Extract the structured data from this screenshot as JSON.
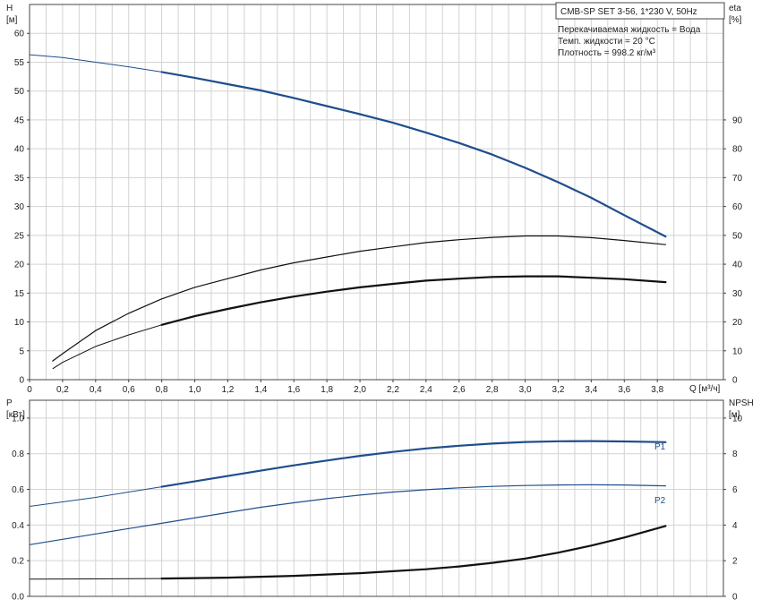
{
  "chart_data": [
    {
      "type": "line",
      "info": {
        "title": "CMB-SP SET 3-56, 1*230 V, 50Hz",
        "lines": [
          "Перекачиваемая жидкость = Вода",
          "Темп. жидкости = 20 °C",
          "Плотность = 998.2 кг/м³"
        ]
      },
      "xlabel": "Q [м³/ч]",
      "ylabel_left": [
        "H",
        "[м]"
      ],
      "ylabel_right": [
        "eta",
        "[%]"
      ],
      "xlim": [
        0,
        4.2
      ],
      "ylim_left": [
        0,
        65
      ],
      "ylim_right": [
        0,
        130
      ],
      "xticks": [
        "0",
        "0,2",
        "0,4",
        "0,6",
        "0,8",
        "1,0",
        "1,2",
        "1,4",
        "1,6",
        "1,8",
        "2,0",
        "2,2",
        "2,4",
        "2,6",
        "2,8",
        "3,0",
        "3,2",
        "3,4",
        "3,6",
        "3,8"
      ],
      "yticks_left": [
        "0",
        "5",
        "10",
        "15",
        "20",
        "25",
        "30",
        "35",
        "40",
        "45",
        "50",
        "55",
        "60"
      ],
      "yticks_right": [
        "0",
        "10",
        "20",
        "30",
        "40",
        "50",
        "60",
        "70",
        "80",
        "90"
      ],
      "grid": true,
      "series": [
        {
          "color": "#1f4e8c",
          "width": 2.2,
          "axis": "left",
          "x": [
            0,
            0.2,
            0.4,
            0.6,
            0.8,
            1.0,
            1.2,
            1.4,
            1.6,
            1.8,
            2.0,
            2.2,
            2.4,
            2.6,
            2.8,
            3.0,
            3.2,
            3.4,
            3.6,
            3.85
          ],
          "y": [
            56.3,
            55.8,
            55.0,
            54.2,
            53.3,
            52.3,
            51.2,
            50.1,
            48.8,
            47.4,
            46.0,
            44.5,
            42.8,
            41.0,
            39.0,
            36.7,
            34.2,
            31.5,
            28.5,
            24.8
          ],
          "thin_until": 0.8
        },
        {
          "color": "#111111",
          "width": 1.2,
          "axis": "right",
          "x": [
            0.14,
            0.2,
            0.4,
            0.6,
            0.8,
            1.0,
            1.2,
            1.4,
            1.6,
            1.8,
            2.0,
            2.2,
            2.4,
            2.6,
            2.8,
            3.0,
            3.2,
            3.4,
            3.6,
            3.85
          ],
          "y": [
            6.5,
            9,
            17,
            23,
            28,
            32,
            35,
            38,
            40.5,
            42.5,
            44.5,
            46,
            47.5,
            48.5,
            49.3,
            49.8,
            49.8,
            49.2,
            48.2,
            46.8
          ]
        },
        {
          "color": "#111111",
          "width": 2.2,
          "axis": "right",
          "x": [
            0.14,
            0.2,
            0.4,
            0.6,
            0.8,
            1.0,
            1.2,
            1.4,
            1.6,
            1.8,
            2.0,
            2.2,
            2.4,
            2.6,
            2.8,
            3.0,
            3.2,
            3.4,
            3.6,
            3.85
          ],
          "y": [
            3.8,
            6,
            11.5,
            15.5,
            19,
            22,
            24.5,
            26.8,
            28.8,
            30.5,
            32,
            33.2,
            34.3,
            35,
            35.6,
            35.8,
            35.8,
            35.3,
            34.8,
            33.8
          ],
          "thin_until": 0.8
        }
      ]
    },
    {
      "type": "line",
      "xlim": [
        0,
        4.2
      ],
      "ylabel_left": [
        "P",
        "[кВт]"
      ],
      "ylabel_right": [
        "NPSH",
        "[м]"
      ],
      "ylim_left": [
        0,
        1.1
      ],
      "ylim_right": [
        0,
        11
      ],
      "yticks_left": [
        "0.0",
        "0.2",
        "0.4",
        "0.6",
        "0.8",
        "1.0"
      ],
      "yticks_right": [
        "0",
        "2",
        "4",
        "6",
        "8",
        "10"
      ],
      "grid": true,
      "series": [
        {
          "name": "P1",
          "color": "#1f4e8c",
          "width": 2.2,
          "axis": "left",
          "x": [
            0,
            0.2,
            0.4,
            0.6,
            0.8,
            1.0,
            1.2,
            1.4,
            1.6,
            1.8,
            2.0,
            2.2,
            2.4,
            2.6,
            2.8,
            3.0,
            3.2,
            3.4,
            3.6,
            3.85
          ],
          "y": [
            0.505,
            0.53,
            0.555,
            0.585,
            0.615,
            0.645,
            0.675,
            0.705,
            0.735,
            0.762,
            0.788,
            0.81,
            0.83,
            0.845,
            0.857,
            0.866,
            0.87,
            0.871,
            0.869,
            0.865
          ],
          "thin_until": 0.8
        },
        {
          "name": "P2",
          "color": "#1f4e8c",
          "width": 1.2,
          "axis": "left",
          "x": [
            0,
            0.2,
            0.4,
            0.6,
            0.8,
            1.0,
            1.2,
            1.4,
            1.6,
            1.8,
            2.0,
            2.2,
            2.4,
            2.6,
            2.8,
            3.0,
            3.2,
            3.4,
            3.6,
            3.85
          ],
          "y": [
            0.29,
            0.32,
            0.35,
            0.38,
            0.41,
            0.44,
            0.47,
            0.5,
            0.525,
            0.548,
            0.568,
            0.585,
            0.598,
            0.609,
            0.617,
            0.622,
            0.625,
            0.626,
            0.625,
            0.62
          ]
        },
        {
          "color": "#111111",
          "width": 2.2,
          "axis": "right",
          "x": [
            0,
            0.4,
            0.8,
            1.2,
            1.6,
            2.0,
            2.4,
            2.6,
            2.8,
            3.0,
            3.2,
            3.4,
            3.6,
            3.85
          ],
          "y": [
            0.97,
            0.98,
            1.0,
            1.05,
            1.15,
            1.3,
            1.52,
            1.68,
            1.88,
            2.12,
            2.45,
            2.85,
            3.3,
            3.95
          ],
          "thin_until": 0.8
        }
      ]
    }
  ]
}
